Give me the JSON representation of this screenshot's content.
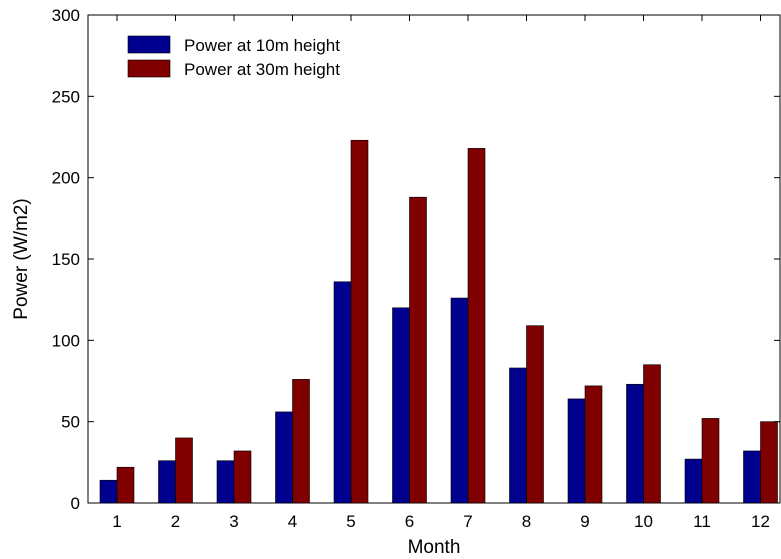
{
  "chart_data": {
    "type": "bar",
    "title": "",
    "xlabel": "Month",
    "ylabel": "Power (W/m2)",
    "ylim": [
      0,
      300
    ],
    "yticks": [
      0,
      50,
      100,
      150,
      200,
      250,
      300
    ],
    "categories": [
      "1",
      "2",
      "3",
      "4",
      "5",
      "6",
      "7",
      "8",
      "9",
      "10",
      "11",
      "12"
    ],
    "series": [
      {
        "name": "Power at 10m height",
        "color": "#00008f",
        "values": [
          14,
          26,
          26,
          56,
          136,
          120,
          126,
          83,
          64,
          73,
          27,
          32
        ]
      },
      {
        "name": "Power at 30m height",
        "color": "#800000",
        "values": [
          22,
          40,
          32,
          76,
          223,
          188,
          218,
          109,
          72,
          85,
          52,
          50
        ]
      }
    ],
    "legend_position": "top-left",
    "grid": false
  }
}
